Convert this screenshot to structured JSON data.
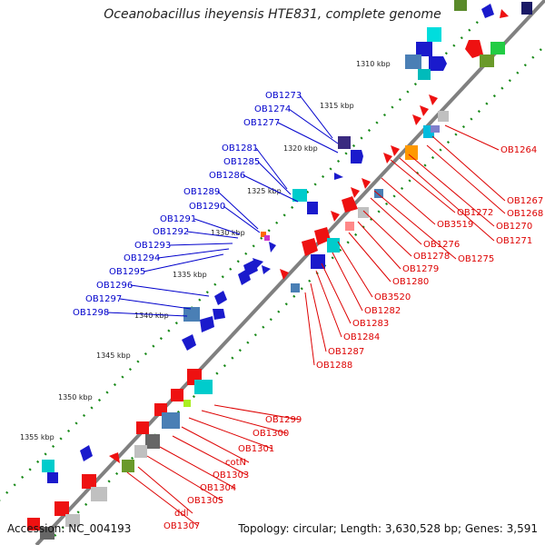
{
  "title": "Oceanobacillus iheyensis HTE831, complete genome",
  "accession": "Accession: NC_004193",
  "summary": "Topology: circular; Length: 3,630,528 bp; Genes: 3,591",
  "colors": {
    "forward_label": "#0000cc",
    "reverse_label": "#dd0000",
    "tick": "#1a8a1a",
    "backbone": "#808080"
  },
  "kbp_labels": [
    "1310 kbp",
    "1315 kbp",
    "1320 kbp",
    "1325 kbp",
    "1330 kbp",
    "1335 kbp",
    "1340 kbp",
    "1345 kbp",
    "1350 kbp",
    "1355 kbp"
  ],
  "forward_genes": [
    "OB1273",
    "OB1274",
    "OB1277",
    "OB1281",
    "OB1285",
    "OB1286",
    "OB1289",
    "OB1290",
    "OB1291",
    "OB1292",
    "OB1293",
    "OB1294",
    "OB1295",
    "OB1296",
    "OB1297",
    "OB1298"
  ],
  "reverse_genes_upper": [
    "OB1264",
    "OB1267",
    "OB1268",
    "OB1270",
    "OB1271",
    "OB1272",
    "OB3519",
    "OB1275",
    "OB1276",
    "OB1278",
    "OB1279",
    "OB1280",
    "OB3520",
    "OB1282",
    "OB1283",
    "OB1284",
    "OB1287",
    "OB1288"
  ],
  "reverse_genes_lower": [
    "OB1299",
    "OB1300",
    "OB1301",
    "cotN",
    "OB1303",
    "OB1304",
    "OB1305",
    "ddl",
    "OB1307"
  ]
}
